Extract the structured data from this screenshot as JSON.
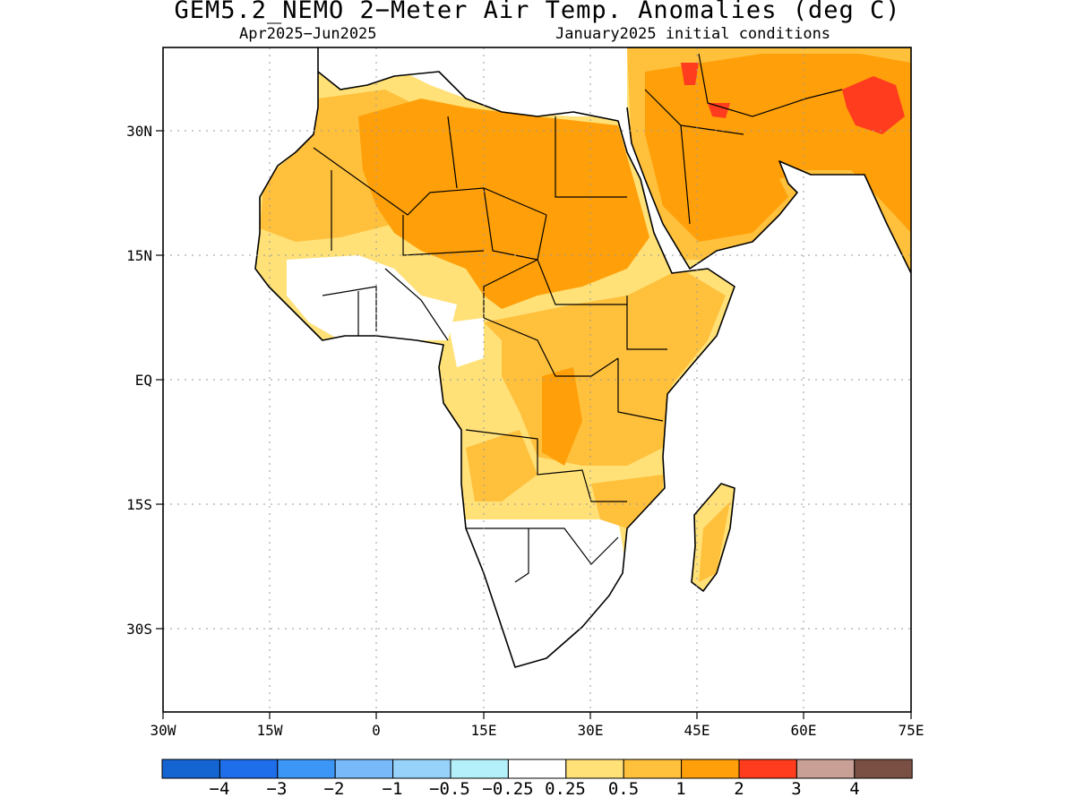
{
  "title": "GEM5.2_NEMO 2−Meter Air Temp. Anomalies (deg C)",
  "subtitle_left": "Apr2025−Jun2025",
  "subtitle_right": "January2025 initial conditions",
  "map": {
    "region": "Africa and Arabian Peninsula",
    "lon_range": [
      -30,
      75
    ],
    "lat_range": [
      -42,
      47
    ],
    "grid": true,
    "x_ticks": [
      "30W",
      "15W",
      "0",
      "15E",
      "30E",
      "45E",
      "60E",
      "75E"
    ],
    "y_ticks": [
      "30N",
      "15N",
      "EQ",
      "15S",
      "30S"
    ]
  },
  "colorbar": {
    "colors": [
      "#1464d2",
      "#1e6eeb",
      "#3c96f5",
      "#78b9fa",
      "#96d2fa",
      "#b4f0fa",
      "#ffffff",
      "#ffe178",
      "#ffc03c",
      "#ffa00a",
      "#ff3c1e",
      "#c8a096",
      "#7a5044"
    ],
    "labels": [
      "−4",
      "−3",
      "−2",
      "−1",
      "−0.5",
      "−0.25",
      "0.25",
      "0.5",
      "1",
      "2",
      "3",
      "4"
    ]
  }
}
